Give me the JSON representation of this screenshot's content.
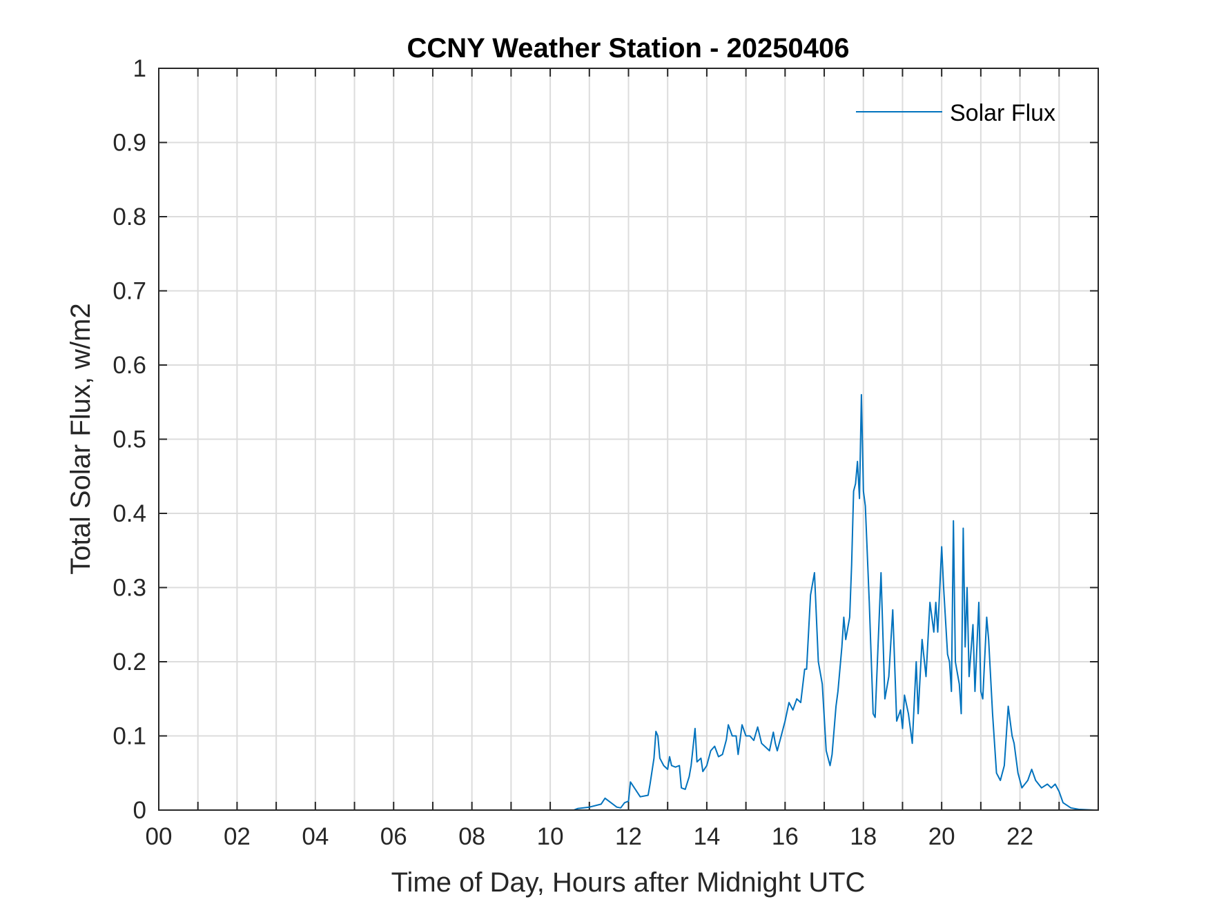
{
  "chart_data": {
    "type": "line",
    "title": "CCNY Weather Station - 20250406",
    "xlabel": "Time of Day, Hours after Midnight UTC",
    "ylabel": "Total Solar Flux, w/m2",
    "xlim": [
      0,
      24
    ],
    "ylim": [
      0,
      1
    ],
    "xticks": [
      0,
      2,
      4,
      6,
      8,
      10,
      12,
      14,
      16,
      18,
      20,
      22
    ],
    "xtick_labels": [
      "00",
      "02",
      "04",
      "06",
      "08",
      "10",
      "12",
      "14",
      "16",
      "18",
      "20",
      "22"
    ],
    "yticks": [
      0,
      0.1,
      0.2,
      0.3,
      0.4,
      0.5,
      0.6,
      0.7,
      0.8,
      0.9,
      1
    ],
    "ytick_labels": [
      "0",
      "0.1",
      "0.2",
      "0.3",
      "0.4",
      "0.5",
      "0.6",
      "0.7",
      "0.8",
      "0.9",
      "1"
    ],
    "grid": true,
    "legend_position": "top-right",
    "series": [
      {
        "name": "Solar Flux",
        "color": "#0072BD",
        "x": [
          0,
          10.6,
          10.7,
          11.0,
          11.3,
          11.4,
          11.5,
          11.7,
          11.8,
          11.9,
          12.0,
          12.05,
          12.15,
          12.3,
          12.5,
          12.55,
          12.65,
          12.7,
          12.75,
          12.8,
          12.9,
          13.0,
          13.05,
          13.1,
          13.2,
          13.3,
          13.35,
          13.45,
          13.55,
          13.6,
          13.7,
          13.75,
          13.85,
          13.9,
          14.0,
          14.1,
          14.2,
          14.3,
          14.4,
          14.5,
          14.55,
          14.65,
          14.75,
          14.8,
          14.9,
          15.0,
          15.1,
          15.2,
          15.3,
          15.4,
          15.5,
          15.6,
          15.7,
          15.75,
          15.8,
          15.9,
          16.0,
          16.1,
          16.2,
          16.3,
          16.4,
          16.5,
          16.55,
          16.65,
          16.75,
          16.85,
          16.95,
          17.05,
          17.15,
          17.2,
          17.3,
          17.35,
          17.45,
          17.5,
          17.55,
          17.65,
          17.7,
          17.75,
          17.8,
          17.85,
          17.9,
          17.95,
          18.0,
          18.05,
          18.15,
          18.25,
          18.3,
          18.45,
          18.55,
          18.65,
          18.75,
          18.85,
          18.95,
          19.0,
          19.05,
          19.15,
          19.25,
          19.35,
          19.4,
          19.5,
          19.6,
          19.7,
          19.8,
          19.85,
          19.9,
          20.0,
          20.05,
          20.15,
          20.2,
          20.25,
          20.3,
          20.35,
          20.45,
          20.5,
          20.55,
          20.6,
          20.65,
          20.7,
          20.8,
          20.85,
          20.95,
          21.0,
          21.05,
          21.15,
          21.2,
          21.3,
          21.4,
          21.5,
          21.6,
          21.7,
          21.8,
          21.85,
          21.95,
          22.05,
          22.2,
          22.3,
          22.4,
          22.55,
          22.7,
          22.8,
          22.9,
          23.0,
          23.1,
          23.3,
          23.5,
          23.9
        ],
        "y": [
          0,
          0,
          0.002,
          0.004,
          0.008,
          0.016,
          0.012,
          0.004,
          0.003,
          0.01,
          0.012,
          0.038,
          0.03,
          0.018,
          0.02,
          0.035,
          0.07,
          0.106,
          0.1,
          0.07,
          0.06,
          0.055,
          0.072,
          0.06,
          0.058,
          0.06,
          0.03,
          0.028,
          0.045,
          0.06,
          0.11,
          0.065,
          0.07,
          0.052,
          0.06,
          0.08,
          0.086,
          0.072,
          0.075,
          0.095,
          0.115,
          0.1,
          0.1,
          0.075,
          0.115,
          0.1,
          0.1,
          0.094,
          0.112,
          0.09,
          0.085,
          0.08,
          0.105,
          0.09,
          0.08,
          0.1,
          0.12,
          0.145,
          0.135,
          0.15,
          0.145,
          0.19,
          0.19,
          0.29,
          0.32,
          0.2,
          0.17,
          0.08,
          0.06,
          0.075,
          0.14,
          0.16,
          0.22,
          0.26,
          0.23,
          0.26,
          0.33,
          0.43,
          0.44,
          0.47,
          0.42,
          0.56,
          0.43,
          0.41,
          0.28,
          0.13,
          0.125,
          0.32,
          0.15,
          0.18,
          0.27,
          0.12,
          0.135,
          0.11,
          0.155,
          0.13,
          0.09,
          0.2,
          0.13,
          0.23,
          0.18,
          0.28,
          0.24,
          0.28,
          0.24,
          0.355,
          0.3,
          0.21,
          0.2,
          0.16,
          0.39,
          0.2,
          0.17,
          0.13,
          0.38,
          0.22,
          0.3,
          0.18,
          0.25,
          0.16,
          0.28,
          0.16,
          0.15,
          0.26,
          0.23,
          0.13,
          0.05,
          0.04,
          0.06,
          0.14,
          0.1,
          0.09,
          0.05,
          0.03,
          0.04,
          0.055,
          0.04,
          0.03,
          0.035,
          0.03,
          0.035,
          0.025,
          0.01,
          0.003,
          0.001,
          0
        ]
      }
    ]
  }
}
